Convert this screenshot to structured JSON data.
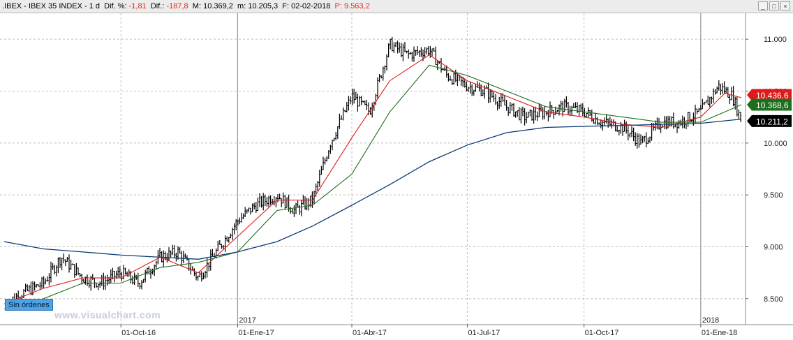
{
  "header": {
    "symbol": ".IBEX",
    "name": "IBEX 35 INDEX",
    "period": "1 d",
    "dif_pct_label": "Dif. %:",
    "dif_pct_value": "-1,81",
    "dif_label": "Dif.:",
    "dif_value": "-187,8",
    "max_label": "M:",
    "max_value": "10.369,2",
    "min_label": "m:",
    "min_value": "10.205,3",
    "date_label": "F:",
    "date_value": "02-02-2018",
    "p_label": "P:",
    "p_value": "9.563,2"
  },
  "window_controls": {
    "minimize": "_",
    "maximize": "□",
    "close": "×"
  },
  "orders_badge": "Sin órdenes",
  "watermark": "www.visualchart.com",
  "price_tags": [
    {
      "value": "10.436,6",
      "color": "#e01a1a",
      "series": "ma_fast"
    },
    {
      "value": "10.368,6",
      "color": "#1e6e1e",
      "series": "ma_mid"
    },
    {
      "value": "10.211,2",
      "color": "#000000",
      "series": "last"
    }
  ],
  "colors": {
    "ma_fast": "#e01a1a",
    "ma_mid": "#1e6e1e",
    "ma_slow": "#0c3a73",
    "candle": "#000000",
    "grid": "#bdbdbd"
  },
  "chart_data": {
    "type": "line",
    "ylim": [
      8250,
      11250
    ],
    "yticks": [
      "8.500",
      "9.000",
      "9.500",
      "10.000",
      "10.500",
      "11.000"
    ],
    "x_range": [
      "2016-07-01",
      "2018-02-02"
    ],
    "year_markers": [
      {
        "date": "2017-01-01",
        "label": "2017"
      },
      {
        "date": "2018-01-01",
        "label": "2018"
      }
    ],
    "x_ticks": [
      {
        "date": "2016-10-01",
        "label": "01-Oct-16"
      },
      {
        "date": "2017-01-01",
        "label": "01-Ene-17"
      },
      {
        "date": "2017-04-01",
        "label": "01-Abr-17"
      },
      {
        "date": "2017-07-01",
        "label": "01-Jul-17"
      },
      {
        "date": "2017-10-01",
        "label": "01-Oct-17"
      },
      {
        "date": "2018-01-01",
        "label": "01-Ene-18"
      }
    ],
    "price_close": {
      "x": [
        "2016-07-01",
        "2016-07-15",
        "2016-08-01",
        "2016-08-15",
        "2016-09-01",
        "2016-09-15",
        "2016-10-01",
        "2016-10-15",
        "2016-11-01",
        "2016-11-15",
        "2016-12-01",
        "2016-12-15",
        "2017-01-01",
        "2017-01-15",
        "2017-02-01",
        "2017-02-15",
        "2017-03-01",
        "2017-03-15",
        "2017-04-01",
        "2017-04-15",
        "2017-05-01",
        "2017-05-15",
        "2017-06-01",
        "2017-06-15",
        "2017-07-01",
        "2017-07-15",
        "2017-08-01",
        "2017-08-15",
        "2017-09-01",
        "2017-09-15",
        "2017-10-01",
        "2017-10-15",
        "2017-11-01",
        "2017-11-15",
        "2017-12-01",
        "2017-12-15",
        "2018-01-01",
        "2018-01-15",
        "2018-01-26",
        "2018-02-02"
      ],
      "y": [
        8450,
        8550,
        8650,
        8900,
        8700,
        8650,
        8750,
        8650,
        8900,
        8950,
        8700,
        8950,
        9250,
        9400,
        9500,
        9350,
        9450,
        10000,
        10450,
        10300,
        10950,
        10850,
        10900,
        10650,
        10550,
        10500,
        10350,
        10250,
        10300,
        10350,
        10300,
        10200,
        10150,
        10000,
        10200,
        10200,
        10300,
        10550,
        10450,
        10211
      ]
    },
    "series": [
      {
        "key": "ma_fast",
        "x": [
          "2016-07-01",
          "2016-08-01",
          "2016-09-01",
          "2016-10-01",
          "2016-11-01",
          "2016-12-01",
          "2017-01-01",
          "2017-02-01",
          "2017-03-01",
          "2017-04-01",
          "2017-05-01",
          "2017-06-01",
          "2017-07-01",
          "2017-08-01",
          "2017-09-01",
          "2017-10-01",
          "2017-11-01",
          "2017-12-01",
          "2018-01-01",
          "2018-01-20",
          "2018-02-02"
        ],
        "y": [
          8450,
          8600,
          8700,
          8700,
          8900,
          8750,
          9100,
          9450,
          9450,
          10050,
          10600,
          10850,
          10600,
          10450,
          10300,
          10250,
          10180,
          10150,
          10250,
          10480,
          10437
        ]
      },
      {
        "key": "ma_mid",
        "x": [
          "2016-07-01",
          "2016-08-01",
          "2016-09-01",
          "2016-10-01",
          "2016-11-01",
          "2016-12-01",
          "2017-01-01",
          "2017-02-01",
          "2017-03-01",
          "2017-04-01",
          "2017-05-01",
          "2017-06-01",
          "2017-07-01",
          "2017-08-01",
          "2017-09-01",
          "2017-10-01",
          "2017-11-01",
          "2017-12-01",
          "2018-01-01",
          "2018-01-20",
          "2018-02-02"
        ],
        "y": [
          8400,
          8500,
          8650,
          8650,
          8800,
          8850,
          8950,
          9350,
          9400,
          9700,
          10300,
          10750,
          10650,
          10500,
          10350,
          10300,
          10250,
          10200,
          10200,
          10300,
          10369
        ]
      },
      {
        "key": "ma_slow",
        "x": [
          "2016-07-01",
          "2016-08-01",
          "2016-09-01",
          "2016-10-01",
          "2016-11-01",
          "2016-12-01",
          "2017-01-01",
          "2017-02-01",
          "2017-03-01",
          "2017-04-01",
          "2017-05-01",
          "2017-06-01",
          "2017-07-01",
          "2017-08-01",
          "2017-09-01",
          "2017-10-01",
          "2017-11-01",
          "2017-12-01",
          "2018-01-01",
          "2018-02-02"
        ],
        "y": [
          9050,
          8980,
          8950,
          8920,
          8900,
          8880,
          8950,
          9050,
          9200,
          9400,
          9600,
          9820,
          9980,
          10100,
          10150,
          10160,
          10170,
          10180,
          10190,
          10230
        ]
      }
    ]
  }
}
